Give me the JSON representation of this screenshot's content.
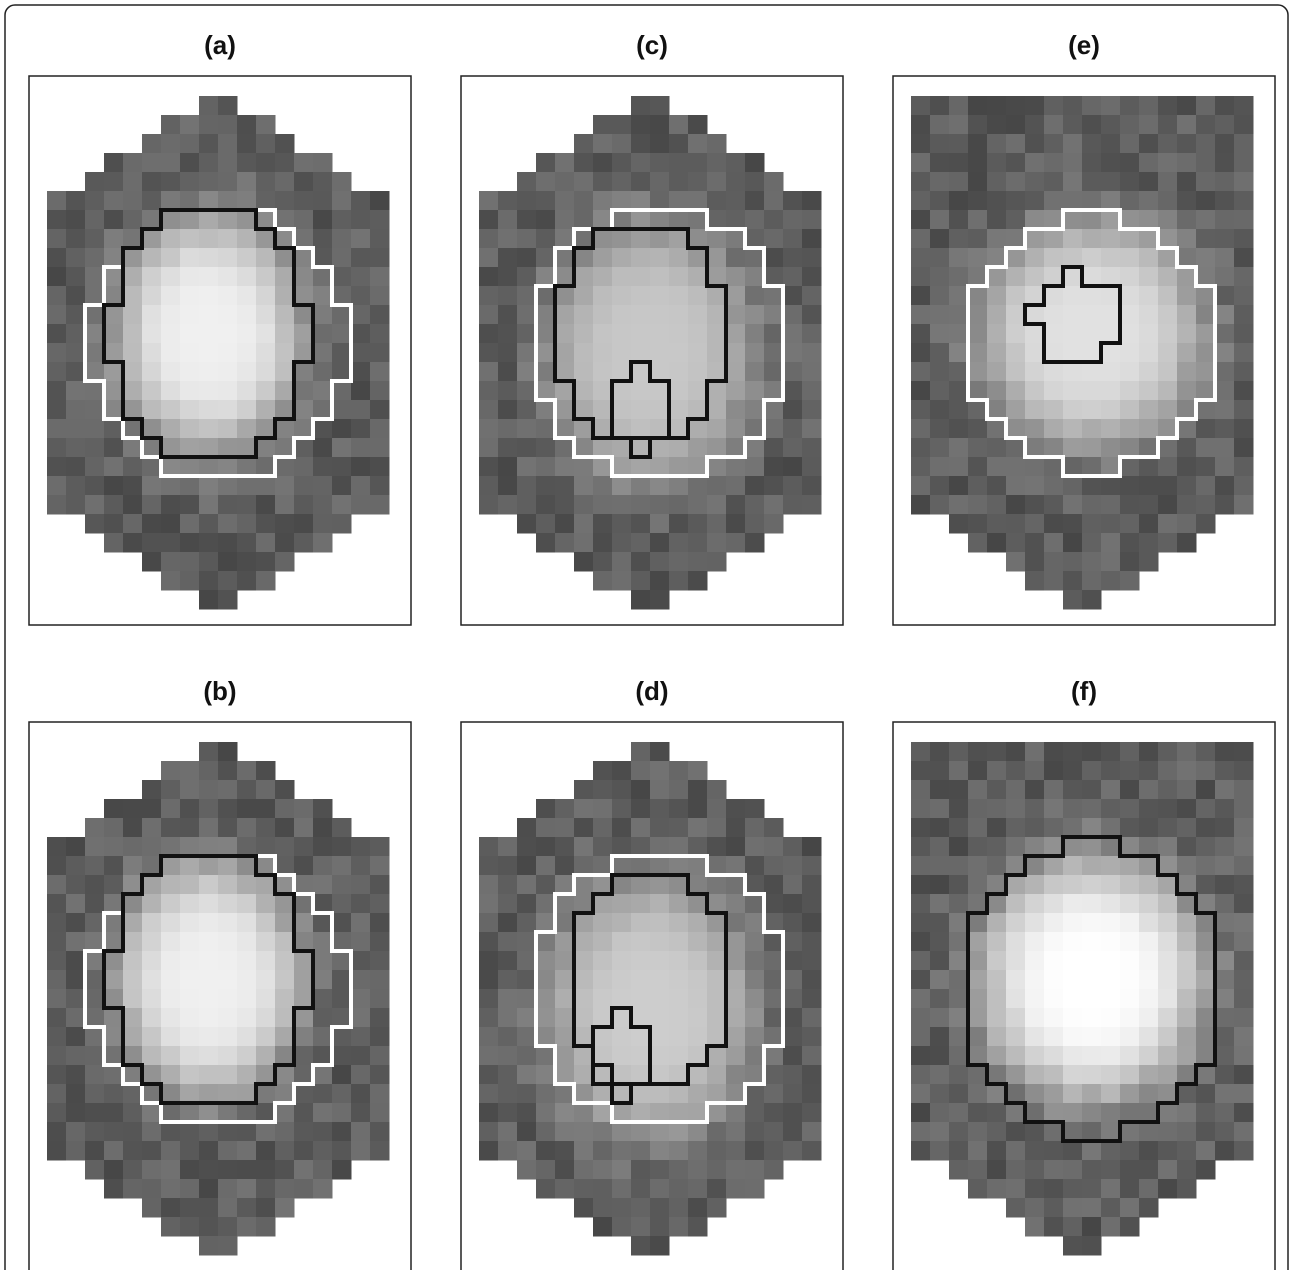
{
  "panels": [
    {
      "label": "(a)"
    },
    {
      "label": "(c)"
    },
    {
      "label": "(e)"
    },
    {
      "label": "(b)"
    },
    {
      "label": "(d)"
    },
    {
      "label": "(f)"
    }
  ]
}
